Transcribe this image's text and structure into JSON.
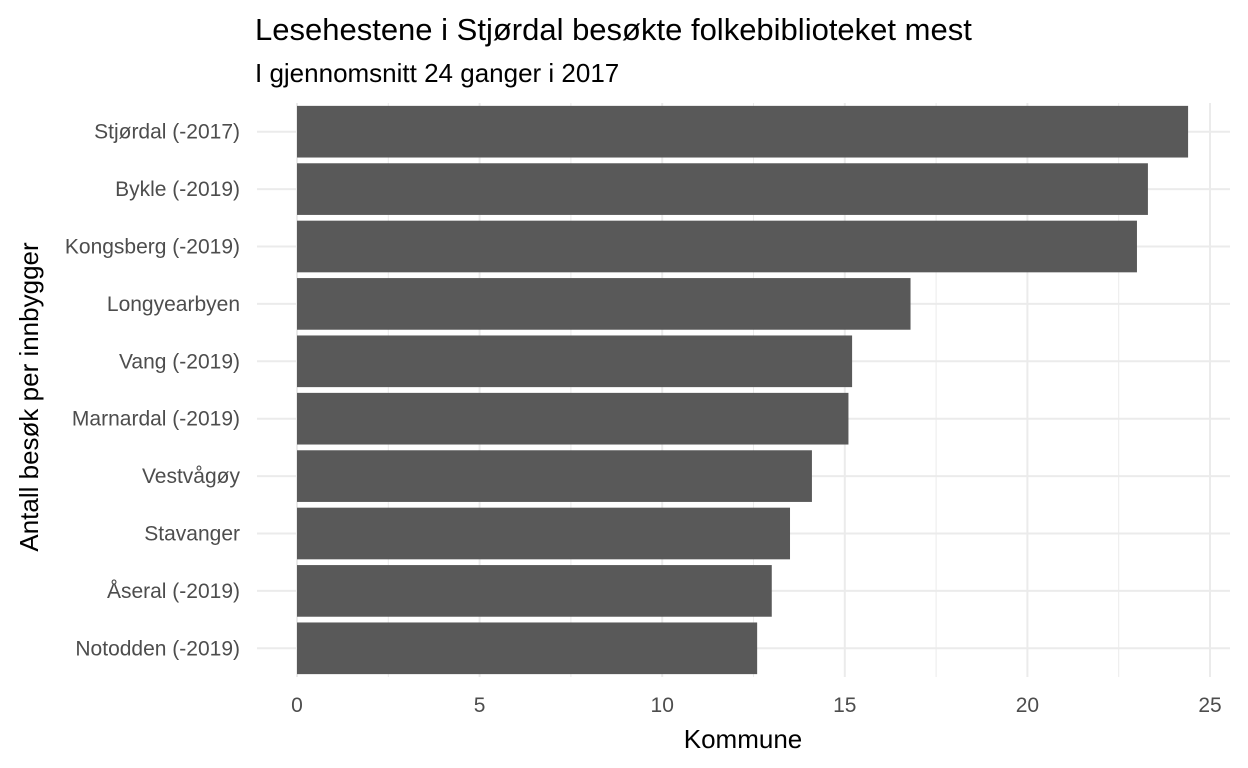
{
  "chart_data": {
    "type": "bar",
    "orientation": "horizontal",
    "title": "Lesehestene i Stjørdal besøkte folkebiblioteket mest",
    "subtitle": "I gjennomsnitt 24 ganger i 2017",
    "xlabel": "Kommune",
    "ylabel": "Antall besøk per innbygger",
    "categories": [
      "Stjørdal (-2017)",
      "Bykle (-2019)",
      "Kongsberg (-2019)",
      "Longyearbyen",
      "Vang (-2019)",
      "Marnardal (-2019)",
      "Vestvågøy",
      "Stavanger",
      "Åseral (-2019)",
      "Notodden (-2019)"
    ],
    "values": [
      24.4,
      23.3,
      23.0,
      16.8,
      15.2,
      15.1,
      14.1,
      13.5,
      13.0,
      12.6
    ],
    "xlim": [
      0,
      25
    ],
    "xticks": [
      0,
      5,
      10,
      15,
      20,
      25
    ],
    "grid": true,
    "bar_color": "#595959",
    "grid_color": "#ebebeb"
  }
}
